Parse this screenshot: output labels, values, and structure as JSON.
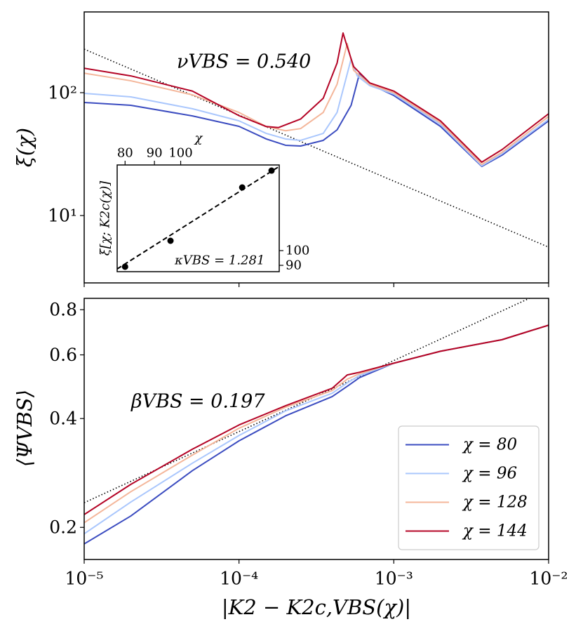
{
  "chart_data": [
    {
      "type": "line",
      "ylabel": "ξ(χ)",
      "xscale": "log",
      "yscale": "log",
      "xlim": [
        1e-05,
        0.01
      ],
      "ylim": [
        2.83,
        454
      ],
      "xticks": [
        1e-05,
        0.0001,
        0.001,
        0.01
      ],
      "xtick_labels": false,
      "yticks": [
        {
          "value": 10,
          "label": "10¹"
        },
        {
          "value": 100,
          "label": "10²"
        }
      ],
      "annotation": "νVBS = 0.540",
      "reference_line": {
        "x": [
          1e-05,
          0.01
        ],
        "values": [
          226,
          5.53
        ]
      },
      "series": [
        {
          "color": "#3b4cc0",
          "x": [
            1e-05,
            2e-05,
            5e-05,
            0.0001,
            0.00015,
            0.0002,
            0.00025,
            0.00035,
            0.00043,
            0.00053,
            0.0006,
            0.0007,
            0.001,
            0.002,
            0.0037,
            0.005,
            0.01
          ],
          "values": [
            83.2,
            78.9,
            64.7,
            53.2,
            42,
            37.3,
            36.8,
            40.9,
            49.8,
            78.9,
            143,
            117,
            94.9,
            53.2,
            25.1,
            31,
            59
          ]
        },
        {
          "color": "#aac7fd",
          "x": [
            1e-05,
            2e-05,
            5e-05,
            0.0001,
            0.00015,
            0.0002,
            0.00025,
            0.00035,
            0.00043,
            0.00053,
            0.00058,
            0.0007,
            0.001,
            0.002,
            0.0037,
            0.005,
            0.01
          ],
          "values": [
            98.7,
            92.4,
            74,
            59,
            46.6,
            42,
            40.9,
            46.6,
            69,
            188,
            137,
            114,
            97.4,
            55.3,
            25.4,
            31.8,
            60.6
          ]
        },
        {
          "color": "#f4b69a",
          "x": [
            1e-05,
            2e-05,
            5e-05,
            0.0001,
            0.00015,
            0.0002,
            0.00025,
            0.00035,
            0.00043,
            0.0005,
            0.00055,
            0.0007,
            0.001,
            0.002,
            0.0037,
            0.005,
            0.01
          ],
          "values": [
            144,
            125,
            96,
            69,
            53,
            49,
            51,
            69,
            117,
            251,
            152,
            117,
            100,
            57,
            26.1,
            32.7,
            64
          ]
        },
        {
          "color": "#b40426",
          "x": [
            1e-05,
            2e-05,
            5e-05,
            0.0001,
            0.00015,
            0.00018,
            0.00025,
            0.00035,
            0.00043,
            0.00047,
            0.00049,
            0.00055,
            0.0007,
            0.001,
            0.002,
            0.0037,
            0.005,
            0.01
          ],
          "values": [
            158,
            137,
            103,
            65,
            53,
            52,
            61,
            90,
            174,
            306,
            257,
            163,
            120,
            103,
            59,
            27.2,
            34.4,
            67.4
          ]
        }
      ]
    },
    {
      "type": "scatter",
      "xlabel": "χ",
      "ylabel": "ξ[χ; K2c(χ)]",
      "xscale": "log",
      "yscale": "log",
      "xaxis_position": "top",
      "yaxis_position": "right",
      "xlim": [
        77.5,
        148.5
      ],
      "ylim": [
        86.0,
        184.7
      ],
      "xticks": [
        80,
        90,
        100
      ],
      "yticks": [
        90,
        100
      ],
      "annotation": "κVBS = 1.281",
      "color": "#000000",
      "x": [
        80,
        96,
        128,
        144
      ],
      "values": [
        89.1,
        107.3,
        157.2,
        177.4
      ],
      "fit": {
        "x": [
          77.5,
          148.5
        ],
        "values": [
          87.7,
          182.8
        ]
      }
    },
    {
      "type": "line",
      "xlabel": "|K2 − K2c,VBS(χ)|",
      "ylabel": "⟨ΨVBS⟩",
      "xscale": "log",
      "yscale": "log",
      "xlim": [
        1e-05,
        0.01
      ],
      "ylim": [
        0.163,
        0.86
      ],
      "xticks": [
        {
          "value": 1e-05,
          "label": "10⁻⁵"
        },
        {
          "value": 0.0001,
          "label": "10⁻⁴"
        },
        {
          "value": 0.001,
          "label": "10⁻³"
        },
        {
          "value": 0.01,
          "label": "10⁻²"
        }
      ],
      "yticks": [
        0.2,
        0.4,
        0.6,
        0.8
      ],
      "annotation": "βVBS = 0.197",
      "legend": "lower right",
      "reference_line": {
        "x": [
          1e-05,
          0.01
        ],
        "values": [
          0.234,
          0.91
        ]
      },
      "series": [
        {
          "name": "χ = 80",
          "color": "#3b4cc0",
          "x": [
            1e-05,
            2e-05,
            5e-05,
            0.0001,
            0.0002,
            0.0004,
            0.0005,
            0.0006,
            0.001,
            0.002,
            0.005,
            0.01
          ],
          "values": [
            0.18,
            0.215,
            0.287,
            0.347,
            0.407,
            0.46,
            0.491,
            0.519,
            0.569,
            0.614,
            0.661,
            0.725
          ]
        },
        {
          "name": "χ = 96",
          "color": "#aac7fd",
          "x": [
            1e-05,
            2e-05,
            5e-05,
            0.0001,
            0.0002,
            0.0004,
            0.0005,
            0.0006,
            0.001,
            0.002,
            0.005,
            0.01
          ],
          "values": [
            0.192,
            0.235,
            0.301,
            0.359,
            0.42,
            0.47,
            0.502,
            0.526,
            0.569,
            0.614,
            0.661,
            0.725
          ]
        },
        {
          "name": "χ = 128",
          "color": "#f4b69a",
          "x": [
            1e-05,
            2e-05,
            5e-05,
            0.0001,
            0.0002,
            0.0004,
            0.0005,
            0.0006,
            0.001,
            0.002,
            0.005,
            0.01
          ],
          "values": [
            0.206,
            0.251,
            0.317,
            0.376,
            0.43,
            0.478,
            0.514,
            0.532,
            0.569,
            0.614,
            0.661,
            0.725
          ]
        },
        {
          "name": "χ = 144",
          "color": "#b40426",
          "x": [
            1e-05,
            2e-05,
            5e-05,
            0.0001,
            0.0002,
            0.0004,
            0.0005,
            0.0006,
            0.001,
            0.002,
            0.005,
            0.01
          ],
          "values": [
            0.217,
            0.263,
            0.329,
            0.384,
            0.434,
            0.485,
            0.528,
            0.537,
            0.569,
            0.614,
            0.661,
            0.725
          ]
        }
      ]
    }
  ]
}
